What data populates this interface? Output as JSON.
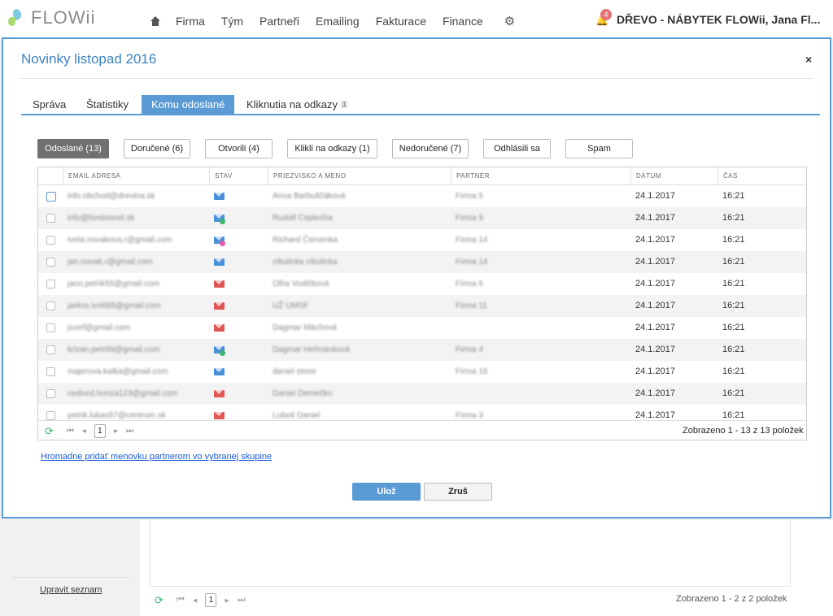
{
  "app": {
    "logo": "FLOWii",
    "nav": [
      "Firma",
      "Tým",
      "Partneři",
      "Emailing",
      "Fakturace",
      "Finance"
    ],
    "notification_count": "4",
    "user": "DŘEVO - NÁBYTEK FLOWii, Jana Fl..."
  },
  "background": {
    "edit_list_link": "Upravit seznam",
    "page_number": "1",
    "count_text": "Zobrazeno 1 - 2 z 2 položek"
  },
  "modal": {
    "title": "Novinky listopad 2016",
    "close_symbol": "×",
    "tabs": [
      {
        "label": "Správa",
        "badge": ""
      },
      {
        "label": "Štatistiky",
        "badge": ""
      },
      {
        "label": "Komu odoslané",
        "badge": ""
      },
      {
        "label": "Kliknutia na odkazy",
        "badge": "1"
      }
    ],
    "active_tab": "Komu odoslané",
    "filters": [
      "Odoslané (13)",
      "Doručené (6)",
      "Otvorili (4)",
      "Klikli na odkazy (1)",
      "Nedoručené (7)",
      "Odhlásili sa",
      "Spam"
    ],
    "active_filter": "Odoslané (13)",
    "columns": [
      "EMAIL ADRESA",
      "STAV",
      "PRIEZVISKO A MENO",
      "PARTNER",
      "DÁTUM",
      "ČAS"
    ],
    "rows": [
      {
        "email": "info.obchod@drevina.sk",
        "status": "blue",
        "status_mark": "",
        "name": "Anna Barbuščáková",
        "partner": "Firma 5",
        "date": "24.1.2017",
        "time": "16:21"
      },
      {
        "email": "info@fontionnel.sk",
        "status": "blue",
        "status_mark": "ok",
        "name": "Rudolf Ceplecha",
        "partner": "Firma 9",
        "date": "24.1.2017",
        "time": "16:21"
      },
      {
        "email": "iveta.novakova.r@gmail.com",
        "status": "blue",
        "status_mark": "pink",
        "name": "Richard Červenka",
        "partner": "Firma 14",
        "date": "24.1.2017",
        "time": "16:21"
      },
      {
        "email": "jan.novak.r@gmail.com",
        "status": "blue",
        "status_mark": "",
        "name": "cibulicka cibulicka",
        "partner": "Firma 14",
        "date": "24.1.2017",
        "time": "16:21"
      },
      {
        "email": "jano.petrik55@gmail.com",
        "status": "red",
        "status_mark": "",
        "name": "Olha Vodičková",
        "partner": "Firma 6",
        "date": "24.1.2017",
        "time": "16:21"
      },
      {
        "email": "jarkos.ivo665@gmail.com",
        "status": "red",
        "status_mark": "",
        "name": "UŽ UMSF",
        "partner": "Firma 11",
        "date": "24.1.2017",
        "time": "16:21"
      },
      {
        "email": "jozef@gmail.com",
        "status": "red",
        "status_mark": "",
        "name": "Dagmar Máchová",
        "partner": "",
        "date": "24.1.2017",
        "time": "16:21"
      },
      {
        "email": "krizan.petr99@gmail.com",
        "status": "blue",
        "status_mark": "ok",
        "name": "Dagmar Heřmánková",
        "partner": "Firma 4",
        "date": "24.1.2017",
        "time": "16:21"
      },
      {
        "email": "majerova.katka@gmail.com",
        "status": "blue",
        "status_mark": "",
        "name": "daniel stone",
        "partner": "Firma 16",
        "date": "24.1.2017",
        "time": "16:21"
      },
      {
        "email": "nedved.honza123@gmail.com",
        "status": "red",
        "status_mark": "",
        "name": "Daniel Demečko",
        "partner": "",
        "date": "24.1.2017",
        "time": "16:21"
      },
      {
        "email": "petrik.lukas57@centrum.sk",
        "status": "red",
        "status_mark": "",
        "name": "Luboš Daniel",
        "partner": "Firma 3",
        "date": "24.1.2017",
        "time": "16:21"
      }
    ],
    "page_number": "1",
    "count_text": "Zobrazeno 1 - 13 z 13 položek",
    "bulk_link": "Hromadne pridať menovku partnerom vo vybranej skupine",
    "save_label": "Ulož",
    "cancel_label": "Zruš"
  },
  "colors": {
    "accent": "#5b9bd5",
    "status_blue": "#4a90d9",
    "status_red": "#e05555",
    "status_ok": "#3cb371",
    "status_pink": "#e05bb4"
  }
}
